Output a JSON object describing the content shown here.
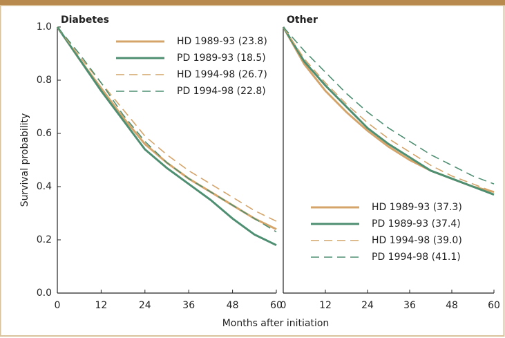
{
  "chart_data": [
    {
      "type": "line",
      "title": "Diabetes",
      "ylabel": "Survival probability",
      "xlabel": "Months after initiation",
      "x": [
        0,
        6,
        12,
        18,
        24,
        30,
        36,
        42,
        48,
        54,
        60
      ],
      "xlim": [
        0,
        60
      ],
      "xticks": [
        0,
        12,
        24,
        36,
        48,
        60
      ],
      "ylim": [
        0,
        1
      ],
      "yticks": [
        {
          "value": 0,
          "label": "0.0"
        },
        0.2,
        0.4,
        0.6,
        0.8,
        {
          "value": 1,
          "label": "1.0"
        }
      ],
      "legend": "upper right",
      "series": [
        {
          "name": "HD 1989-93 (23.8)",
          "color": "#d4a46a",
          "dashed": false,
          "values": [
            1.0,
            0.88,
            0.77,
            0.66,
            0.56,
            0.49,
            0.43,
            0.38,
            0.33,
            0.28,
            0.24
          ]
        },
        {
          "name": "PD 1989-93 (18.5)",
          "color": "#4e8f72",
          "dashed": false,
          "values": [
            1.0,
            0.88,
            0.76,
            0.65,
            0.54,
            0.47,
            0.41,
            0.35,
            0.28,
            0.22,
            0.18
          ]
        },
        {
          "name": "HD 1994-98 (26.7)",
          "color": "#d4a46a",
          "dashed": true,
          "values": [
            1.0,
            0.89,
            0.79,
            0.69,
            0.59,
            0.52,
            0.46,
            0.41,
            0.36,
            0.31,
            0.27
          ]
        },
        {
          "name": "PD 1994-98 (22.8)",
          "color": "#4e8f72",
          "dashed": true,
          "values": [
            1.0,
            0.9,
            0.79,
            0.67,
            0.57,
            0.49,
            0.43,
            0.38,
            0.33,
            0.28,
            0.23
          ]
        }
      ]
    },
    {
      "type": "line",
      "title": "Other",
      "x": [
        0,
        6,
        12,
        18,
        24,
        30,
        36,
        42,
        48,
        54,
        60
      ],
      "xlim": [
        0,
        60
      ],
      "xticks": [
        0,
        12,
        24,
        36,
        48,
        60
      ],
      "ylim": [
        0,
        1
      ],
      "legend": "lower right",
      "series": [
        {
          "name": "HD 1989-93 (37.3)",
          "color": "#d4a46a",
          "dashed": false,
          "values": [
            1.0,
            0.86,
            0.76,
            0.68,
            0.61,
            0.55,
            0.5,
            0.46,
            0.43,
            0.4,
            0.38
          ]
        },
        {
          "name": "PD 1989-93 (37.4)",
          "color": "#4e8f72",
          "dashed": false,
          "values": [
            1.0,
            0.87,
            0.78,
            0.7,
            0.62,
            0.56,
            0.51,
            0.46,
            0.43,
            0.4,
            0.37
          ]
        },
        {
          "name": "HD 1994-98 (39.0)",
          "color": "#d4a46a",
          "dashed": true,
          "values": [
            1.0,
            0.88,
            0.79,
            0.71,
            0.64,
            0.58,
            0.53,
            0.48,
            0.44,
            0.41,
            0.38
          ]
        },
        {
          "name": "PD 1994-98 (41.1)",
          "color": "#4e8f72",
          "dashed": true,
          "values": [
            1.0,
            0.91,
            0.83,
            0.75,
            0.68,
            0.62,
            0.57,
            0.52,
            0.48,
            0.44,
            0.41
          ]
        }
      ]
    }
  ]
}
